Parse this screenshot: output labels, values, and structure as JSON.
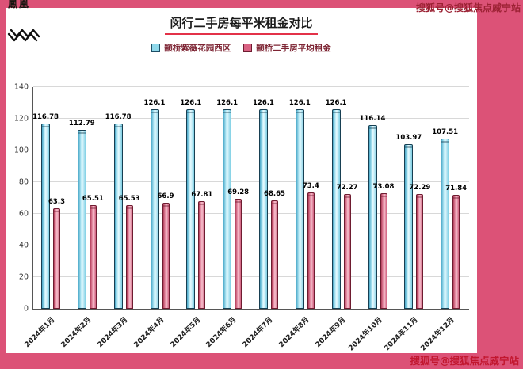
{
  "frame": {
    "bg": "#dc5277"
  },
  "corner_mark": "鳳凰",
  "watermark_top": "搜狐号@搜狐焦点威宁站",
  "watermark_bottom": "搜狐号@搜狐焦点威宁站",
  "chart_data": {
    "type": "bar",
    "title": "闵行二手房每平米租金对比",
    "categories": [
      "2024年1月",
      "2024年2月",
      "2024年3月",
      "2024年4月",
      "2024年5月",
      "2024年6月",
      "2024年7月",
      "2024年8月",
      "2024年9月",
      "2024年10月",
      "2024年11月",
      "2024年12月"
    ],
    "series": [
      {
        "name": "颛桥紫薇花园西区",
        "color": "#8fd8ea",
        "border": "#1d4e66",
        "values": [
          116.78,
          112.79,
          116.78,
          126.1,
          126.1,
          126.1,
          126.1,
          126.1,
          126.1,
          116.14,
          103.97,
          107.51
        ]
      },
      {
        "name": "颛桥二手房平均租金",
        "color": "#d96283",
        "border": "#6e1c30",
        "values": [
          63.3,
          65.51,
          65.53,
          66.9,
          67.81,
          69.28,
          68.65,
          73.4,
          72.27,
          73.08,
          72.29,
          71.84
        ]
      }
    ],
    "ylim": [
      0,
      140
    ],
    "yticks": [
      0,
      20,
      40,
      60,
      80,
      100,
      120,
      140
    ],
    "grid": true,
    "legend_position": "top"
  }
}
